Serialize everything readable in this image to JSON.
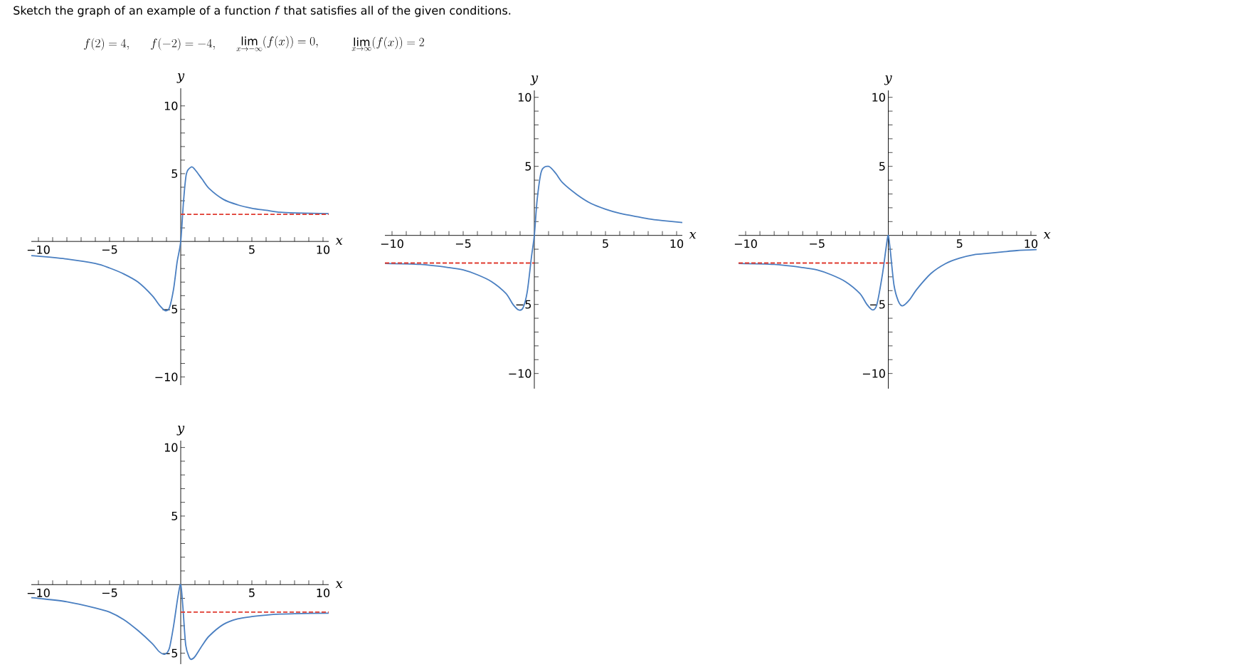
{
  "chart_data": [
    {
      "type": "line",
      "title": "Sketch the graph of an example of a function *f* that satisfies all of the given conditions.",
      "annotations": [
        "f(2) = 4,",
        "f(-2) = -4,",
        "\\lim_{x \\to -\\infty} (f(x)) = 0,",
        "\\lim_{x \\to \\infty} (f(x)) = 2"
      ],
      "xlabel": "x",
      "ylabel": "y",
      "xlim": [
        -10.5,
        10.4
      ],
      "ylim": [
        -10.6,
        11.3
      ],
      "xticks": [
        {
          "value": -10,
          "label": "−10"
        },
        {
          "value": -9,
          "label": null
        },
        {
          "value": -8,
          "label": null
        },
        {
          "value": -7,
          "label": null
        },
        {
          "value": -6,
          "label": null
        },
        {
          "value": -5,
          "label": "−5"
        },
        {
          "value": -4,
          "label": null
        },
        {
          "value": -3,
          "label": null
        },
        {
          "value": -2,
          "label": null
        },
        {
          "value": -1,
          "label": null
        },
        {
          "value": 1,
          "label": null
        },
        {
          "value": 2,
          "label": null
        },
        {
          "value": 3,
          "label": null
        },
        {
          "value": 4,
          "label": null
        },
        5,
        {
          "value": 6,
          "label": null
        },
        {
          "value": 7,
          "label": null
        },
        {
          "value": 8,
          "label": null
        },
        {
          "value": 9,
          "label": null
        },
        10
      ],
      "yticks": [
        {
          "value": -10,
          "label": "−10"
        },
        {
          "value": -9,
          "label": null
        },
        {
          "value": -8,
          "label": null
        },
        {
          "value": -7,
          "label": null
        },
        {
          "value": -6,
          "label": null
        },
        {
          "value": -5,
          "label": "−5"
        },
        {
          "value": -4,
          "label": null
        },
        {
          "value": -3,
          "label": null
        },
        {
          "value": -2,
          "label": null
        },
        {
          "value": -1,
          "label": null
        },
        {
          "value": 1,
          "label": null
        },
        {
          "value": 2,
          "label": null
        },
        {
          "value": 3,
          "label": null
        },
        {
          "value": 4,
          "label": null
        },
        5,
        {
          "value": 6,
          "label": null
        },
        {
          "value": 7,
          "label": null
        },
        {
          "value": 8,
          "label": null
        },
        {
          "value": 9,
          "label": null
        },
        10
      ],
      "series": [
        {
          "color": "#4a7fc1",
          "line_style": "solid",
          "x": [
            -10.5,
            -10,
            -8,
            -6,
            -5,
            -4,
            -3,
            -2,
            -1.5,
            -1.1,
            -0.8,
            -0.5,
            -0.25,
            0,
            0.2,
            0.4,
            0.75,
            1,
            1.5,
            2,
            3,
            4,
            5,
            6,
            7,
            8,
            10.4
          ],
          "values": [
            -1.05,
            -1.09,
            -1.3,
            -1.63,
            -1.96,
            -2.4,
            -3.0,
            -4.0,
            -4.7,
            -5.1,
            -4.9,
            -3.5,
            -1.5,
            0,
            3.0,
            5.0,
            5.5,
            5.3,
            4.6,
            3.9,
            3.1,
            2.7,
            2.45,
            2.3,
            2.15,
            2.1,
            2.05
          ]
        },
        {
          "color": "#e03a2f",
          "line_style": "dashed",
          "x": [
            0,
            10.4
          ],
          "values": [
            2,
            2
          ]
        }
      ]
    },
    {
      "type": "line",
      "xlabel": "x",
      "ylabel": "y",
      "xlim": [
        -10.5,
        10.4
      ],
      "ylim": [
        -11.1,
        10.5
      ],
      "xticks": [
        {
          "value": -10,
          "label": "−10"
        },
        {
          "value": -9,
          "label": null
        },
        {
          "value": -8,
          "label": null
        },
        {
          "value": -7,
          "label": null
        },
        {
          "value": -6,
          "label": null
        },
        {
          "value": -5,
          "label": "−5"
        },
        {
          "value": -4,
          "label": null
        },
        {
          "value": -3,
          "label": null
        },
        {
          "value": -2,
          "label": null
        },
        {
          "value": -1,
          "label": null
        },
        {
          "value": 1,
          "label": null
        },
        {
          "value": 2,
          "label": null
        },
        {
          "value": 3,
          "label": null
        },
        {
          "value": 4,
          "label": null
        },
        5,
        {
          "value": 6,
          "label": null
        },
        {
          "value": 7,
          "label": null
        },
        {
          "value": 8,
          "label": null
        },
        {
          "value": 9,
          "label": null
        },
        10
      ],
      "yticks": [
        {
          "value": -10,
          "label": "−10"
        },
        {
          "value": -9,
          "label": null
        },
        {
          "value": -8,
          "label": null
        },
        {
          "value": -7,
          "label": null
        },
        {
          "value": -6,
          "label": null
        },
        {
          "value": -5,
          "label": "−5"
        },
        {
          "value": -4,
          "label": null
        },
        {
          "value": -3,
          "label": null
        },
        {
          "value": -2,
          "label": null
        },
        {
          "value": -1,
          "label": null
        },
        {
          "value": 1,
          "label": null
        },
        {
          "value": 2,
          "label": null
        },
        {
          "value": 3,
          "label": null
        },
        {
          "value": 4,
          "label": null
        },
        5,
        {
          "value": 6,
          "label": null
        },
        {
          "value": 7,
          "label": null
        },
        {
          "value": 8,
          "label": null
        },
        {
          "value": 9,
          "label": null
        },
        10
      ],
      "series": [
        {
          "color": "#4a7fc1",
          "line_style": "solid",
          "x": [
            -10.5,
            -8,
            -6,
            -5,
            -4,
            -3,
            -2,
            -1.5,
            -1.1,
            -0.8,
            -0.5,
            -0.2,
            0,
            0.2,
            0.5,
            1,
            1.5,
            2,
            3,
            4,
            5,
            6,
            7,
            8,
            9,
            10.4
          ],
          "values": [
            -2.03,
            -2.1,
            -2.33,
            -2.5,
            -2.85,
            -3.35,
            -4.2,
            -5.0,
            -5.4,
            -5.25,
            -4.1,
            -1.55,
            0,
            2.6,
            4.65,
            5.0,
            4.5,
            3.8,
            2.95,
            2.3,
            1.9,
            1.6,
            1.4,
            1.2,
            1.07,
            0.93
          ]
        },
        {
          "color": "#e03a2f",
          "line_style": "dashed",
          "x": [
            -10.5,
            0
          ],
          "values": [
            -2,
            -2
          ]
        }
      ]
    },
    {
      "type": "line",
      "xlabel": "x",
      "ylabel": "y",
      "xlim": [
        -10.5,
        10.4
      ],
      "ylim": [
        -11.1,
        10.5
      ],
      "xticks": [
        {
          "value": -10,
          "label": "−10"
        },
        {
          "value": -9,
          "label": null
        },
        {
          "value": -8,
          "label": null
        },
        {
          "value": -7,
          "label": null
        },
        {
          "value": -6,
          "label": null
        },
        {
          "value": -5,
          "label": "−5"
        },
        {
          "value": -4,
          "label": null
        },
        {
          "value": -3,
          "label": null
        },
        {
          "value": -2,
          "label": null
        },
        {
          "value": -1,
          "label": null
        },
        {
          "value": 1,
          "label": null
        },
        {
          "value": 2,
          "label": null
        },
        {
          "value": 3,
          "label": null
        },
        {
          "value": 4,
          "label": null
        },
        5,
        {
          "value": 6,
          "label": null
        },
        {
          "value": 7,
          "label": null
        },
        {
          "value": 8,
          "label": null
        },
        {
          "value": 9,
          "label": null
        },
        10
      ],
      "yticks": [
        {
          "value": -10,
          "label": "−10"
        },
        {
          "value": -9,
          "label": null
        },
        {
          "value": -8,
          "label": null
        },
        {
          "value": -7,
          "label": null
        },
        {
          "value": -6,
          "label": null
        },
        {
          "value": -5,
          "label": "−5"
        },
        {
          "value": -4,
          "label": null
        },
        {
          "value": -3,
          "label": null
        },
        {
          "value": -2,
          "label": null
        },
        {
          "value": -1,
          "label": null
        },
        {
          "value": 1,
          "label": null
        },
        {
          "value": 2,
          "label": null
        },
        {
          "value": 3,
          "label": null
        },
        {
          "value": 4,
          "label": null
        },
        5,
        {
          "value": 6,
          "label": null
        },
        {
          "value": 7,
          "label": null
        },
        {
          "value": 8,
          "label": null
        },
        {
          "value": 9,
          "label": null
        },
        10
      ],
      "series": [
        {
          "color": "#4a7fc1",
          "line_style": "solid",
          "x": [
            -10.5,
            -8,
            -6,
            -5,
            -4,
            -3,
            -2,
            -1.5,
            -1.1,
            -0.8,
            -0.4,
            -0.15,
            0,
            0.15,
            0.4,
            0.7,
            1,
            1.5,
            2,
            3,
            4,
            5,
            6,
            7,
            8,
            9,
            10.4
          ],
          "values": [
            -2.03,
            -2.1,
            -2.33,
            -2.5,
            -2.85,
            -3.35,
            -4.2,
            -5.0,
            -5.4,
            -5.0,
            -2.75,
            -0.86,
            0,
            -1.2,
            -3.6,
            -4.75,
            -5.1,
            -4.65,
            -3.9,
            -2.75,
            -2.05,
            -1.65,
            -1.4,
            -1.3,
            -1.2,
            -1.1,
            -1.03
          ]
        },
        {
          "color": "#e03a2f",
          "line_style": "dashed",
          "x": [
            -10.5,
            0
          ],
          "values": [
            -2,
            -2
          ]
        }
      ]
    },
    {
      "type": "line",
      "xlabel": "x",
      "ylabel": "y",
      "xlim": [
        -10.5,
        10.4
      ],
      "ylim": [
        -5.8,
        10.5
      ],
      "xticks": [
        {
          "value": -10,
          "label": "−10"
        },
        {
          "value": -9,
          "label": null
        },
        {
          "value": -8,
          "label": null
        },
        {
          "value": -7,
          "label": null
        },
        {
          "value": -6,
          "label": null
        },
        {
          "value": -5,
          "label": "−5"
        },
        {
          "value": -4,
          "label": null
        },
        {
          "value": -3,
          "label": null
        },
        {
          "value": -2,
          "label": null
        },
        {
          "value": -1,
          "label": null
        },
        {
          "value": 1,
          "label": null
        },
        {
          "value": 2,
          "label": null
        },
        {
          "value": 3,
          "label": null
        },
        {
          "value": 4,
          "label": null
        },
        5,
        {
          "value": 6,
          "label": null
        },
        {
          "value": 7,
          "label": null
        },
        {
          "value": 8,
          "label": null
        },
        {
          "value": 9,
          "label": null
        },
        10
      ],
      "yticks": [
        {
          "value": -5,
          "label": "−5"
        },
        {
          "value": -4,
          "label": null
        },
        {
          "value": -3,
          "label": null
        },
        {
          "value": -2,
          "label": null
        },
        {
          "value": -1,
          "label": null
        },
        {
          "value": 1,
          "label": null
        },
        {
          "value": 2,
          "label": null
        },
        {
          "value": 3,
          "label": null
        },
        {
          "value": 4,
          "label": null
        },
        5,
        {
          "value": 6,
          "label": null
        },
        {
          "value": 7,
          "label": null
        },
        {
          "value": 8,
          "label": null
        },
        {
          "value": 9,
          "label": null
        },
        10
      ],
      "series": [
        {
          "color": "#4a7fc1",
          "line_style": "solid",
          "x": [
            -10.5,
            -10,
            -8,
            -6,
            -5,
            -4,
            -3,
            -2,
            -1.5,
            -1.1,
            -0.8,
            -0.5,
            -0.2,
            0,
            0.15,
            0.35,
            0.6,
            0.75,
            1,
            1.5,
            2,
            3,
            4,
            5,
            6,
            7,
            8,
            10.4
          ],
          "values": [
            -0.95,
            -1.0,
            -1.25,
            -1.7,
            -2.0,
            -2.55,
            -3.35,
            -4.3,
            -4.9,
            -5.07,
            -4.65,
            -3.0,
            -0.9,
            0,
            -1.6,
            -4.4,
            -5.3,
            -5.45,
            -5.25,
            -4.45,
            -3.75,
            -2.9,
            -2.5,
            -2.33,
            -2.22,
            -2.15,
            -2.12,
            -2.08
          ]
        },
        {
          "color": "#e03a2f",
          "line_style": "dashed",
          "x": [
            0,
            10.4
          ],
          "values": [
            -2,
            -2
          ]
        }
      ]
    }
  ]
}
